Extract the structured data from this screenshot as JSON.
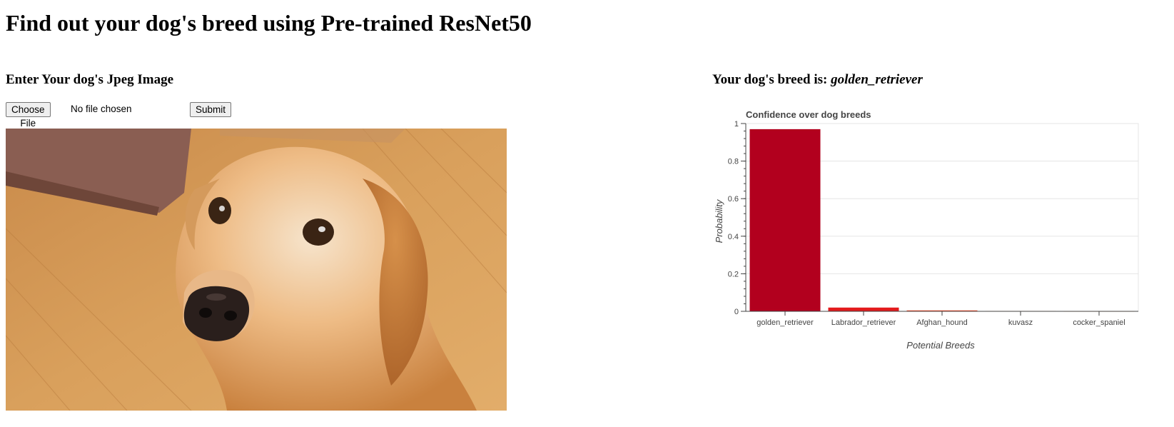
{
  "page": {
    "title": "Find out your dog's breed using Pre-trained ResNet50"
  },
  "upload": {
    "heading": "Enter Your dog's Jpeg Image",
    "choose_file_label": "Choose File",
    "no_file_text": "No file chosen",
    "submit_label": "Submit"
  },
  "result": {
    "prefix": "Your dog's breed is:",
    "breed": "golden_retriever"
  },
  "chart_data": {
    "type": "bar",
    "title": "Confidence over dog breeds",
    "xlabel": "Potential Breeds",
    "ylabel": "Probability",
    "categories": [
      "golden_retriever",
      "Labrador_retriever",
      "Afghan_hound",
      "kuvasz",
      "cocker_spaniel"
    ],
    "values": [
      0.97,
      0.02,
      0.005,
      0.002,
      0.001
    ],
    "ylim": [
      0,
      1
    ],
    "yticks": [
      "0",
      "0.2",
      "0.4",
      "0.6",
      "0.8",
      "1"
    ],
    "grid": true,
    "colors": [
      "#b2001e",
      "#e31a1c",
      "#fc4e2a",
      "#fd8d3c",
      "#feb24c"
    ]
  }
}
